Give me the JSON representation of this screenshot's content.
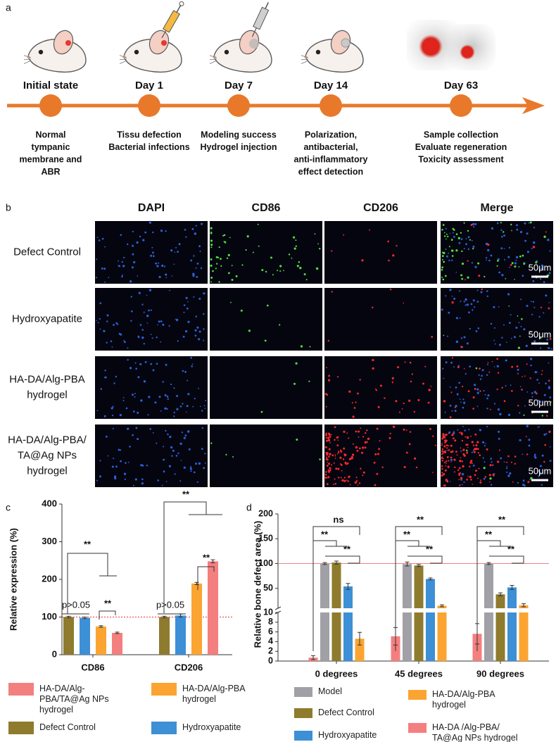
{
  "panel_a": {
    "label": "a",
    "stages": [
      {
        "title": "Initial state",
        "description": [
          "Normal",
          "tympanic",
          "membrane and",
          "ABR"
        ]
      },
      {
        "title": "Day 1",
        "description": [
          "Tissu defection",
          "Bacterial infections"
        ]
      },
      {
        "title": "Day 7",
        "description": [
          "Modeling success",
          "Hydrogel injection"
        ]
      },
      {
        "title": "Day 14",
        "description": [
          "Polarization,",
          "antibacterial,",
          "anti-inflammatory",
          "effect detection"
        ]
      },
      {
        "title": "Day 63",
        "description": [
          "Sample collection",
          "Evaluate regeneration",
          "Toxicity assessment"
        ]
      }
    ]
  },
  "panel_b": {
    "label": "b",
    "columns": [
      "DAPI",
      "CD86",
      "CD206",
      "Merge"
    ],
    "rows": [
      [
        "Defect Control"
      ],
      [
        "Hydroxyapatite"
      ],
      [
        "HA-DA/Alg-PBA",
        "hydrogel"
      ],
      [
        "HA-DA/Alg-PBA/",
        "TA@Ag NPs",
        "hydrogel"
      ]
    ],
    "scale_bar": "50μm"
  },
  "chart_data": [
    {
      "label": "c",
      "type": "bar",
      "y_label": "Relative expression (%)",
      "categories": [
        "CD86",
        "CD206"
      ],
      "series": [
        {
          "name": "Defect Control",
          "color": "#8e7b2d",
          "values": [
            100,
            100
          ],
          "errors": [
            2,
            2
          ]
        },
        {
          "name": "Hydroxyapatite",
          "color": "#3d8fd6",
          "values": [
            98,
            104
          ],
          "errors": [
            2,
            4
          ]
        },
        {
          "name": "HA-DA/Alg-PBA hydrogel",
          "color": "#fba431",
          "values": [
            75,
            189
          ],
          "errors": [
            2,
            3
          ]
        },
        {
          "name": "HA-DA/Alg-PBA/TA@Ag NPs hydrogel",
          "color": "#f47f7f",
          "values": [
            58,
            248
          ],
          "errors": [
            2,
            4
          ]
        }
      ],
      "ylim": [
        0,
        400
      ],
      "yticks": [
        0,
        100,
        200,
        300,
        400
      ],
      "reference_line": 100,
      "annotations": [
        "**",
        "**",
        "p>0.05",
        "**",
        "**",
        "p>0.05"
      ]
    },
    {
      "label": "d",
      "type": "bar",
      "y_label": "Relative bone defect area (%)",
      "categories": [
        "0 degrees",
        "45 degrees",
        "90 degrees"
      ],
      "series": [
        {
          "name": "HA-DA /Alg-PBA/ TA@Ag NPs hydrogel",
          "color": "#f47f7f",
          "values": [
            0.7,
            5.1,
            5.6
          ],
          "errors": [
            0.4,
            1.8,
            2.1
          ]
        },
        {
          "name": "Model",
          "color": "#a0a0a6",
          "values": [
            100,
            99,
            100
          ],
          "errors": [
            2,
            4,
            2
          ]
        },
        {
          "name": "Defect Control",
          "color": "#8e7b2d",
          "values": [
            102,
            96,
            38
          ],
          "errors": [
            3,
            2,
            3
          ]
        },
        {
          "name": "Hydroxyapatite",
          "color": "#3d8fd6",
          "values": [
            54,
            69,
            52
          ],
          "errors": [
            6,
            2,
            4
          ]
        },
        {
          "name": "HA-DA/Alg-PBA hydrogel",
          "color": "#fba431",
          "values": [
            4.6,
            15,
            16
          ],
          "errors": [
            1.3,
            2,
            3
          ]
        }
      ],
      "ylim": [
        0,
        200
      ],
      "axis_break": {
        "lower": {
          "ylim": [
            0,
            10
          ],
          "yticks": [
            0,
            2,
            4,
            6,
            8,
            10
          ]
        },
        "upper": {
          "ylim": [
            10,
            200
          ],
          "yticks": [
            50,
            100,
            150,
            200
          ]
        }
      },
      "reference_line": 100,
      "annotations": [
        "ns",
        "**",
        "**",
        "**",
        "**",
        "**",
        "**",
        "**",
        "**"
      ]
    }
  ]
}
